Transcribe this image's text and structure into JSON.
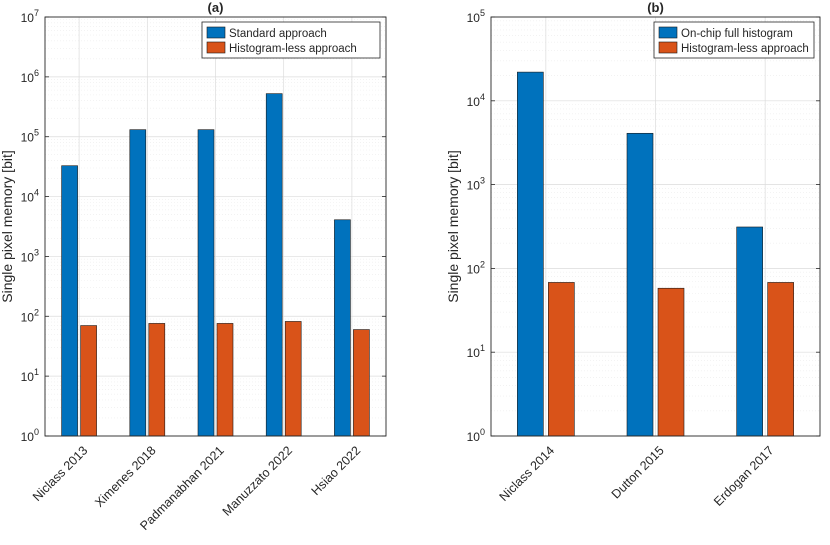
{
  "chart_data": [
    {
      "type": "bar",
      "title": "(a)",
      "xlabel": "",
      "ylabel": "Single pixel memory [bit]",
      "yscale": "log",
      "ylim": [
        1,
        10000000
      ],
      "yticks": [
        {
          "base": "10",
          "exp": "0"
        },
        {
          "base": "10",
          "exp": "1"
        },
        {
          "base": "10",
          "exp": "2"
        },
        {
          "base": "10",
          "exp": "3"
        },
        {
          "base": "10",
          "exp": "4"
        },
        {
          "base": "10",
          "exp": "5"
        },
        {
          "base": "10",
          "exp": "6"
        },
        {
          "base": "10",
          "exp": "7"
        }
      ],
      "grid": true,
      "legend_position": "top-right",
      "categories": [
        "Niclass 2013",
        "Ximenes 2018",
        "Padmanabhan 2021",
        "Manuzzato 2022",
        "Hsiao 2022"
      ],
      "series": [
        {
          "name": "Standard approach",
          "color": "#0072BD",
          "values": [
            32768,
            131072,
            131072,
            524288,
            4096
          ]
        },
        {
          "name": "Histogram-less approach",
          "color": "#D95319",
          "values": [
            70,
            76,
            76,
            82,
            60
          ]
        }
      ]
    },
    {
      "type": "bar",
      "title": "(b)",
      "xlabel": "",
      "ylabel": "Single pixel memory [bit]",
      "yscale": "log",
      "ylim": [
        1,
        100000
      ],
      "yticks": [
        {
          "base": "10",
          "exp": "0"
        },
        {
          "base": "10",
          "exp": "1"
        },
        {
          "base": "10",
          "exp": "2"
        },
        {
          "base": "10",
          "exp": "3"
        },
        {
          "base": "10",
          "exp": "4"
        },
        {
          "base": "10",
          "exp": "5"
        }
      ],
      "grid": true,
      "legend_position": "top-right",
      "categories": [
        "Niclass 2014",
        "Dutton 2015",
        "Erdogan 2017"
      ],
      "series": [
        {
          "name": "On-chip full histogram",
          "color": "#0072BD",
          "values": [
            22000,
            4096,
            312
          ]
        },
        {
          "name": "Histogram-less approach",
          "color": "#D95319",
          "values": [
            68,
            58,
            68
          ]
        }
      ]
    }
  ]
}
